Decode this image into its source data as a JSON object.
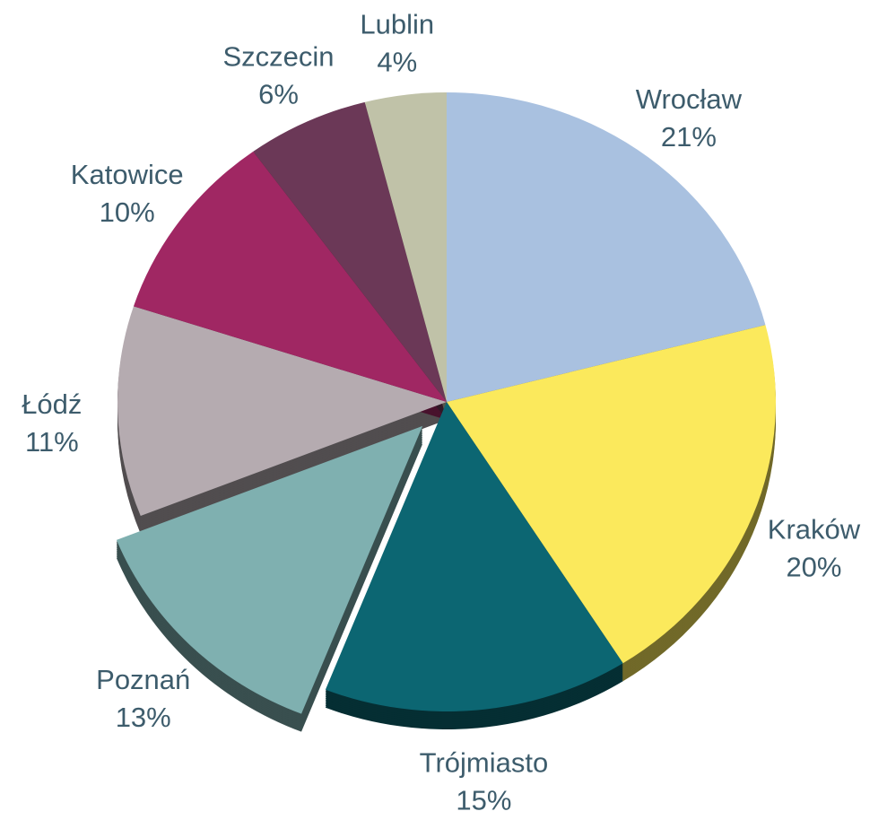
{
  "chart_data": {
    "type": "pie",
    "categories": [
      "Wrocław",
      "Kraków",
      "Trójmiasto",
      "Poznań",
      "Łódź",
      "Katowice",
      "Szczecin",
      "Lublin"
    ],
    "values": [
      21,
      20,
      15,
      13,
      11,
      10,
      6,
      4
    ],
    "value_labels": [
      "21%",
      "20%",
      "15%",
      "13%",
      "11%",
      "10%",
      "6%",
      "4%"
    ],
    "colors": [
      "#a9c1e0",
      "#fbe95c",
      "#0c6672",
      "#7fb0b0",
      "#b5abb0",
      "#a02763",
      "#6b3857",
      "#c0c2a8"
    ],
    "exploded": "Poznań"
  }
}
